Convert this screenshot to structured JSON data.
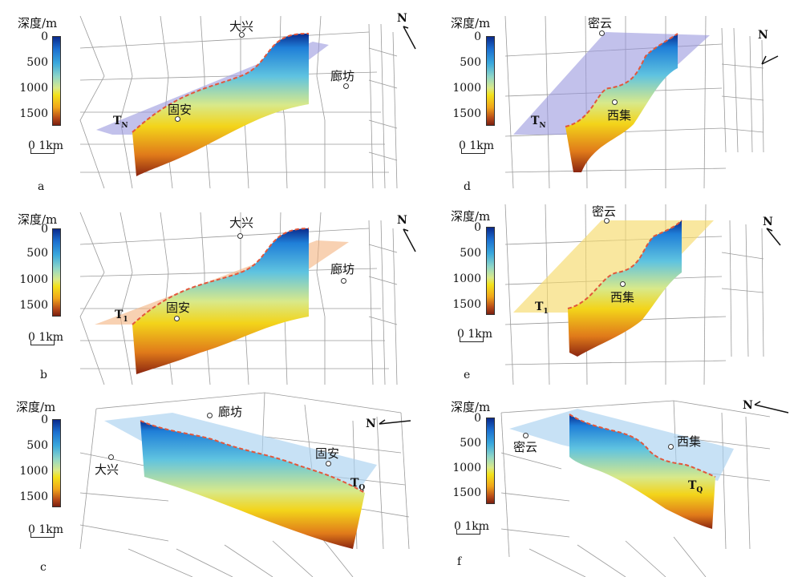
{
  "depth_title": "深度/m",
  "depth_ticks": [
    "0",
    "500",
    "1000",
    "1500"
  ],
  "scale_label": "0 1km",
  "north_label": "N",
  "colors": {
    "grid": "#9a9a9a",
    "tn_plane": "#9a97dd",
    "t1_plane": "#f3b27e",
    "t1_plane_yellow": "#f6da6c",
    "tq_plane": "#a9d1ef",
    "top_dash": "#e2573b"
  },
  "panels": {
    "a": {
      "label": "a",
      "horizon": "T",
      "horizon_sub": "N",
      "places": [
        "大兴",
        "固安",
        "廊坊"
      ]
    },
    "b": {
      "label": "b",
      "horizon": "T",
      "horizon_sub": "1",
      "places": [
        "大兴",
        "固安",
        "廊坊"
      ]
    },
    "c": {
      "label": "c",
      "horizon": "T",
      "horizon_sub": "Q",
      "places": [
        "廊坊",
        "大兴",
        "固安"
      ]
    },
    "d": {
      "label": "d",
      "horizon": "T",
      "horizon_sub": "N",
      "places": [
        "密云",
        "西集"
      ]
    },
    "e": {
      "label": "e",
      "horizon": "T",
      "horizon_sub": "1",
      "places": [
        "密云",
        "西集"
      ]
    },
    "f": {
      "label": "f",
      "horizon": "T",
      "horizon_sub": "Q",
      "places": [
        "密云",
        "西集"
      ]
    }
  }
}
